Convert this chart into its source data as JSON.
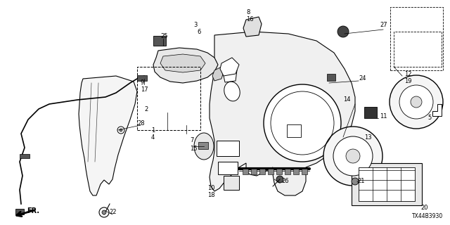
{
  "bg_color": "#ffffff",
  "line_color": "#000000",
  "diagram_id": "TX44B3930",
  "figsize": [
    6.4,
    3.2
  ],
  "dpi": 100
}
